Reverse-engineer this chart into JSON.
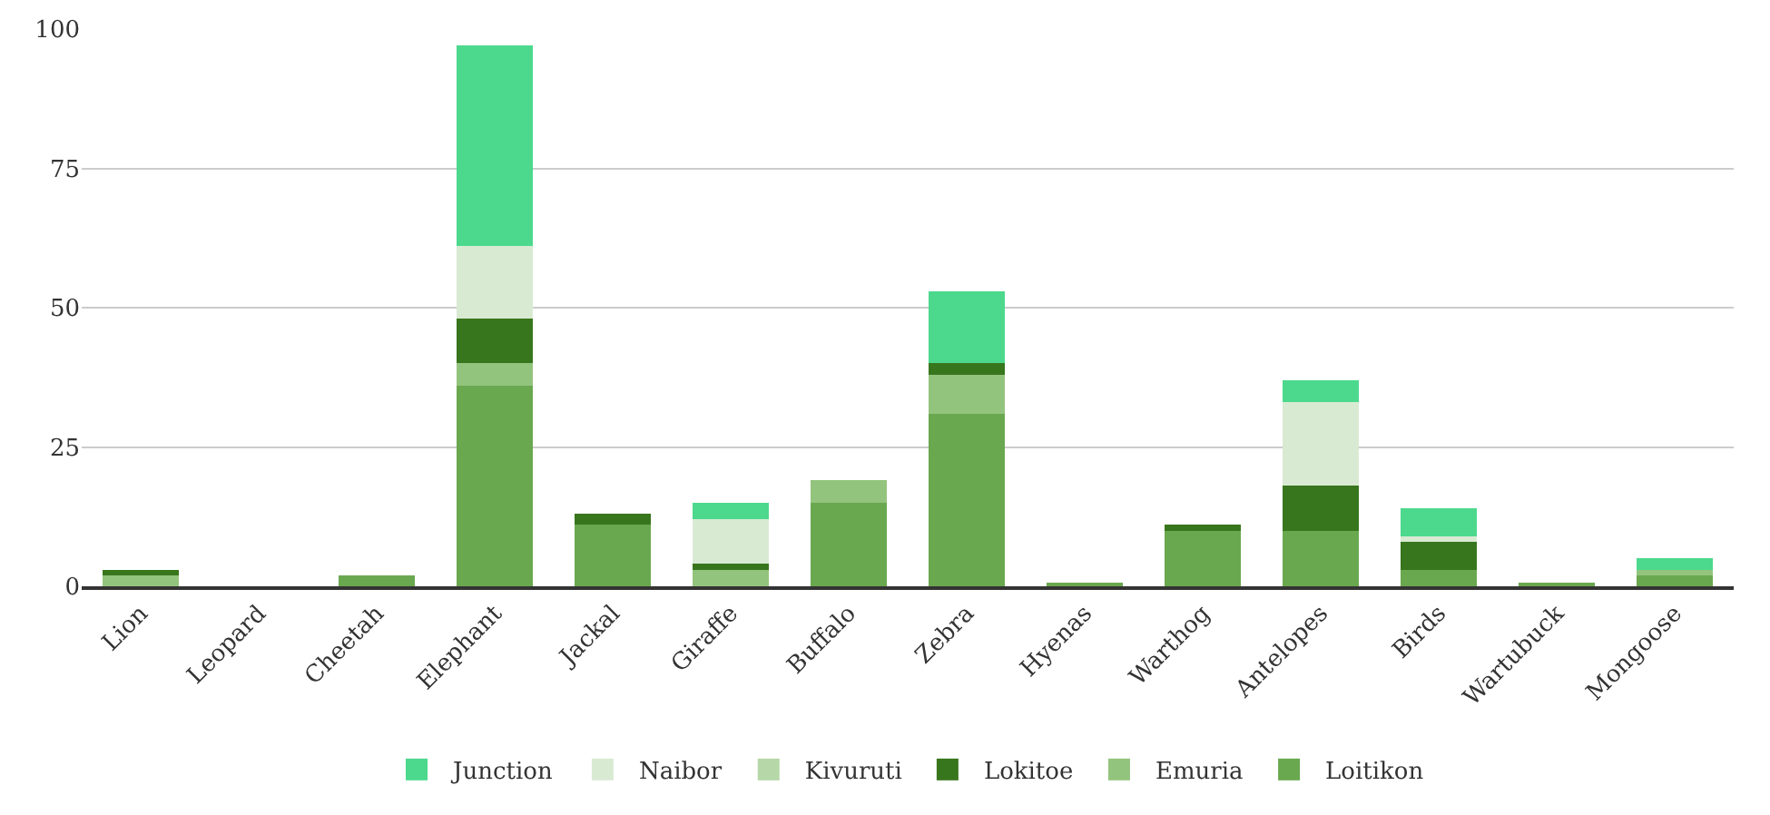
{
  "chart_data": {
    "type": "bar",
    "stacked": true,
    "categories": [
      "Lion",
      "Leopard",
      "Cheetah",
      "Elephant",
      "Jackal",
      "Giraffe",
      "Buffalo",
      "Zebra",
      "Hyenas",
      "Warthog",
      "Antelopes",
      "Birds",
      "Wartubuck",
      "Mongoose"
    ],
    "series": [
      {
        "name": "Loitikon",
        "color": "#6aa84f",
        "values": [
          0,
          0,
          2,
          36,
          11,
          0,
          15,
          31,
          0.5,
          10,
          10,
          3,
          0.5,
          2
        ]
      },
      {
        "name": "Emuria",
        "color": "#93c47d",
        "values": [
          2,
          0,
          0,
          4,
          0,
          3,
          4,
          7,
          0,
          0,
          0,
          0,
          0,
          1
        ]
      },
      {
        "name": "Lokitoe",
        "color": "#38761d",
        "values": [
          1,
          0,
          0,
          8,
          2,
          1,
          0,
          2,
          0,
          1,
          8,
          5,
          0,
          0
        ]
      },
      {
        "name": "Kivuruti",
        "color": "#b6d7a8",
        "values": [
          0,
          0,
          0,
          0,
          0,
          0,
          0,
          0,
          0,
          0,
          0,
          0,
          0,
          0
        ]
      },
      {
        "name": "Naibor",
        "color": "#d9ead3",
        "values": [
          0,
          0,
          0,
          13,
          0,
          8,
          0,
          0,
          0,
          0,
          15,
          1,
          0,
          0
        ]
      },
      {
        "name": "Junction",
        "color": "#4cd98d",
        "values": [
          0,
          0,
          0,
          36,
          0,
          3,
          0,
          13,
          0,
          0,
          4,
          5,
          0,
          2
        ]
      }
    ],
    "ylim": [
      0,
      100
    ],
    "yticks": [
      0,
      25,
      50,
      75,
      100
    ],
    "grid": "y",
    "legend": "bottom"
  }
}
